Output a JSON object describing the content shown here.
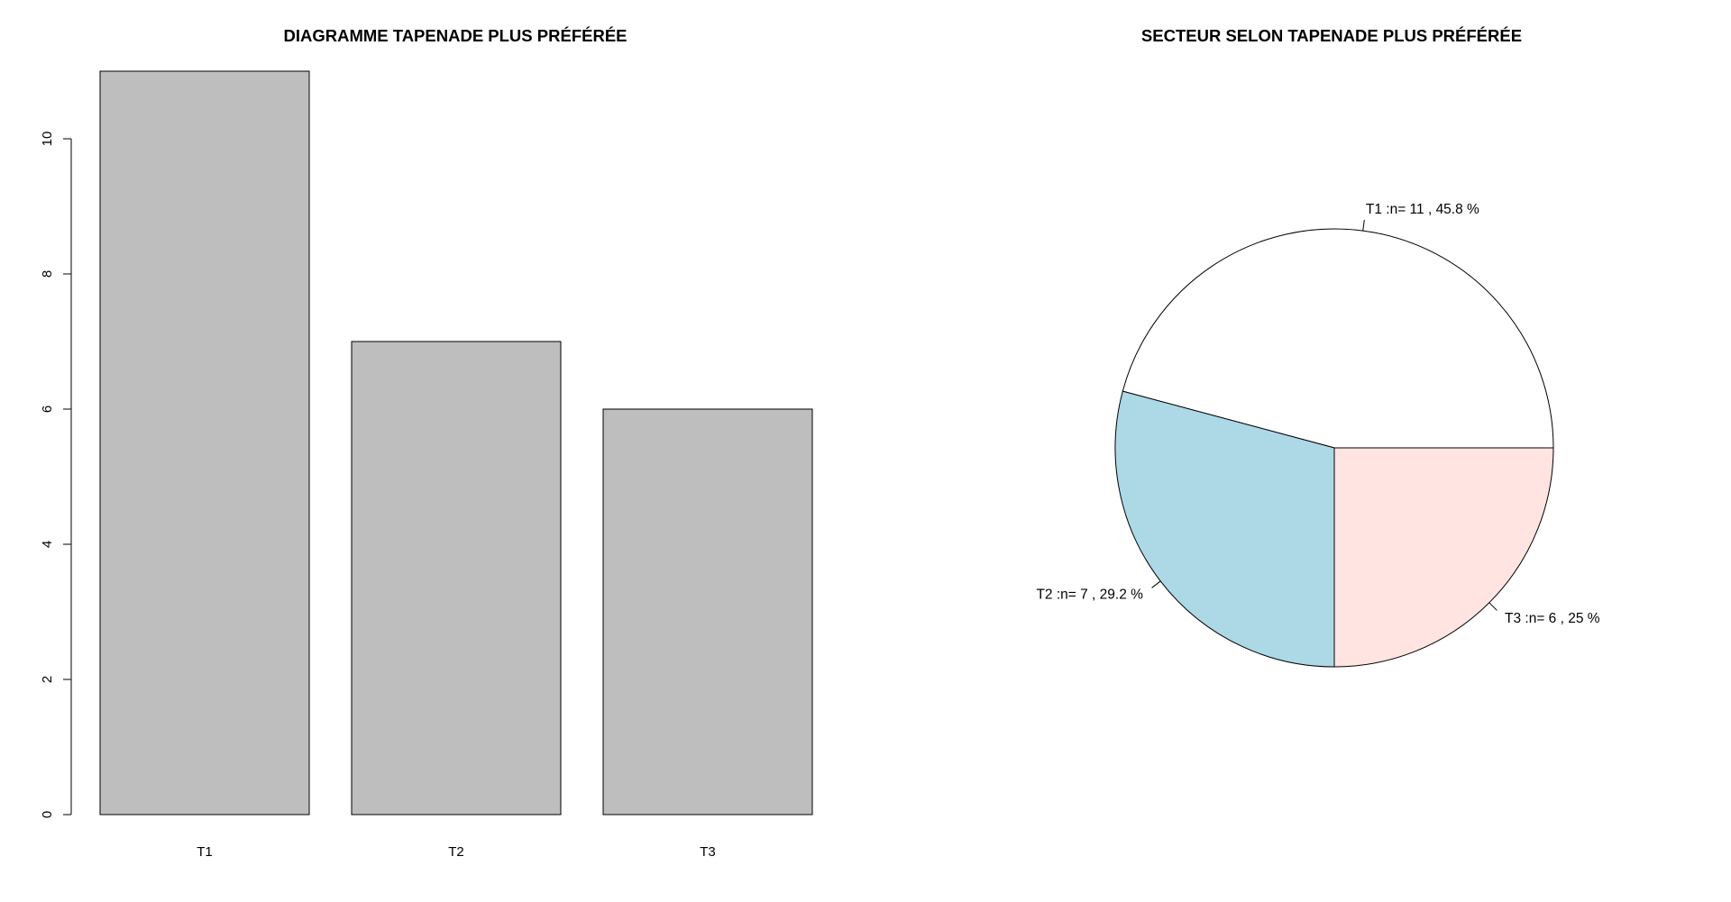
{
  "chart_data": [
    {
      "type": "bar",
      "title": "DIAGRAMME TAPENADE PLUS PRÉFÉRÉE",
      "categories": [
        "T1",
        "T2",
        "T3"
      ],
      "values": [
        11,
        7,
        6
      ],
      "ylim": [
        0,
        11
      ],
      "yticks": [
        0,
        2,
        4,
        6,
        8,
        10
      ],
      "xlabel": "",
      "ylabel": "",
      "bar_color": "#bebebe",
      "grid": false
    },
    {
      "type": "pie",
      "title": "SECTEUR SELON TAPENADE PLUS PRÉFÉRÉE",
      "labels": [
        "T1 :n= 11 , 45.8 %",
        "T2 :n= 7 , 29.2 %",
        "T3 :n= 6 , 25 %"
      ],
      "values": [
        11,
        7,
        6
      ],
      "colors": [
        "#ffffff",
        "#add8e6",
        "#ffe4e1"
      ],
      "start": "3 o'clock",
      "direction": "counterclockwise"
    }
  ]
}
